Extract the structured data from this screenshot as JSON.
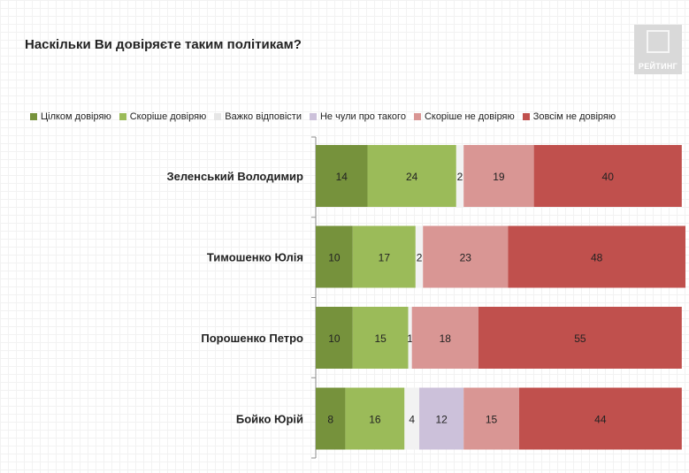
{
  "title": "Наскільки Ви довіряєте таким політикам?",
  "logo": {
    "text": "РЕЙТИНГ"
  },
  "colors": {
    "Цілком довіряю": "#76923c",
    "Скоріше довіряю": "#9bbb59",
    "Важко відповісти": "#f2f2f2",
    "Не чули про такого": "#ccc1da",
    "Скоріше не довіряю": "#d99694",
    "Зовсім не довіряю": "#c0504d"
  },
  "chart_data": {
    "type": "bar",
    "orientation": "horizontal",
    "stacked": true,
    "title": "Наскільки Ви довіряєте таким політикам?",
    "legend_position": "top",
    "categories": [
      "Зеленський Володимир",
      "Тимошенко Юлія",
      "Порошенко Петро",
      "Бойко Юрій"
    ],
    "series": [
      {
        "name": "Цілком довіряю",
        "values": [
          14,
          10,
          10,
          8
        ]
      },
      {
        "name": "Скоріше довіряю",
        "values": [
          24,
          17,
          15,
          16
        ]
      },
      {
        "name": "Важко відповісти",
        "values": [
          2,
          2,
          1,
          4
        ]
      },
      {
        "name": "Не чули про такого",
        "values": [
          0,
          0,
          0,
          12
        ]
      },
      {
        "name": "Скоріше не довіряю",
        "values": [
          19,
          23,
          18,
          15
        ]
      },
      {
        "name": "Зовсім не довіряю",
        "values": [
          40,
          48,
          55,
          44
        ]
      }
    ],
    "xlim": [
      0,
      100
    ],
    "grid": false
  }
}
